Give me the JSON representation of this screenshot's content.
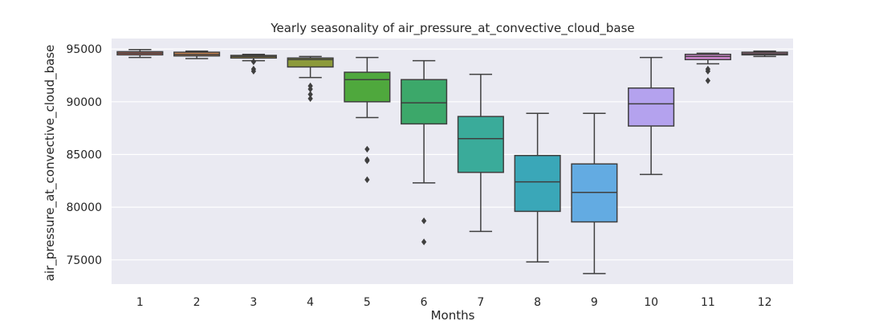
{
  "chart_data": {
    "type": "box",
    "title": "Yearly seasonality of air_pressure_at_convective_cloud_base",
    "xlabel": "Months",
    "ylabel": "air_pressure_at_convective_cloud_base",
    "ylim": [
      72700,
      96000
    ],
    "yticks": [
      75000,
      80000,
      85000,
      90000,
      95000
    ],
    "grid": true,
    "background": "#eaeaf2",
    "categories": [
      "1",
      "2",
      "3",
      "4",
      "5",
      "6",
      "7",
      "8",
      "9",
      "10",
      "11",
      "12"
    ],
    "boxes": [
      {
        "month": "1",
        "color": "#e07060",
        "min": 94200,
        "q1": 94450,
        "median": 94600,
        "q3": 94750,
        "max": 94950,
        "outliers": []
      },
      {
        "month": "2",
        "color": "#d88a50",
        "min": 94100,
        "q1": 94350,
        "median": 94500,
        "q3": 94700,
        "max": 94800,
        "outliers": []
      },
      {
        "month": "3",
        "color": "#b89a40",
        "min": 93900,
        "q1": 94150,
        "median": 94300,
        "q3": 94400,
        "max": 94500,
        "outliers": [
          93800,
          93100,
          92900
        ]
      },
      {
        "month": "4",
        "color": "#8c9a3a",
        "min": 92300,
        "q1": 93300,
        "median": 94000,
        "q3": 94150,
        "max": 94300,
        "outliers": [
          91500,
          91200,
          90700,
          90300
        ]
      },
      {
        "month": "5",
        "color": "#4fa83d",
        "min": 88500,
        "q1": 90000,
        "median": 92100,
        "q3": 92800,
        "max": 94200,
        "outliers": [
          85500,
          84500,
          84400,
          82600
        ]
      },
      {
        "month": "6",
        "color": "#3ca86a",
        "min": 82300,
        "q1": 87900,
        "median": 89900,
        "q3": 92100,
        "max": 93900,
        "outliers": [
          78700,
          76700
        ]
      },
      {
        "month": "7",
        "color": "#3aab9a",
        "min": 77700,
        "q1": 83300,
        "median": 86500,
        "q3": 88600,
        "max": 92600,
        "outliers": []
      },
      {
        "month": "8",
        "color": "#3aa7b8",
        "min": 74800,
        "q1": 79600,
        "median": 82400,
        "q3": 84900,
        "max": 88900,
        "outliers": []
      },
      {
        "month": "9",
        "color": "#63abe2",
        "min": 73700,
        "q1": 78600,
        "median": 81400,
        "q3": 84100,
        "max": 88900,
        "outliers": []
      },
      {
        "month": "10",
        "color": "#b4a2ee",
        "min": 83100,
        "q1": 87700,
        "median": 89800,
        "q3": 91300,
        "max": 94200,
        "outliers": []
      },
      {
        "month": "11",
        "color": "#d88ad8",
        "min": 93600,
        "q1": 94000,
        "median": 94300,
        "q3": 94500,
        "max": 94600,
        "outliers": [
          93100,
          92900,
          92000
        ]
      },
      {
        "month": "12",
        "color": "#e080a8",
        "min": 94300,
        "q1": 94450,
        "median": 94550,
        "q3": 94700,
        "max": 94800,
        "outliers": []
      }
    ]
  }
}
